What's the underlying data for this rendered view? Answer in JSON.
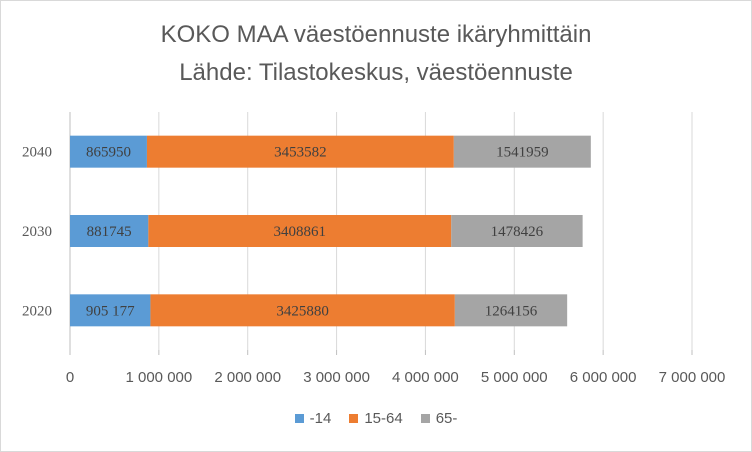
{
  "chart_data": {
    "type": "bar",
    "orientation": "horizontal",
    "stacked": true,
    "title": "KOKO MAA väestöennuste ikäryhmittäin",
    "subtitle": "Lähde: Tilastokeskus, väestöennuste",
    "categories": [
      "2020",
      "2030",
      "2040"
    ],
    "series": [
      {
        "name": "-14",
        "color": "#5b9bd5",
        "values": [
          905177,
          881745,
          865950
        ],
        "labels": [
          "905 177",
          "881745",
          "865950"
        ]
      },
      {
        "name": "15-64",
        "color": "#ed7d31",
        "values": [
          3425880,
          3408861,
          3453582
        ],
        "labels": [
          "3425880",
          "3408861",
          "3453582"
        ]
      },
      {
        "name": "65-",
        "color": "#a5a5a5",
        "values": [
          1264156,
          1478426,
          1541959
        ],
        "labels": [
          "1264156",
          "1478426",
          "1541959"
        ]
      }
    ],
    "xlim": [
      0,
      7000000
    ],
    "xticks": [
      0,
      1000000,
      2000000,
      3000000,
      4000000,
      5000000,
      6000000,
      7000000
    ],
    "xtick_labels": [
      "0",
      "1 000 000",
      "2 000 000",
      "3 000 000",
      "4 000 000",
      "5 000 000",
      "6 000 000",
      "7 000 000"
    ],
    "grid": "vertical",
    "legend_position": "bottom"
  }
}
